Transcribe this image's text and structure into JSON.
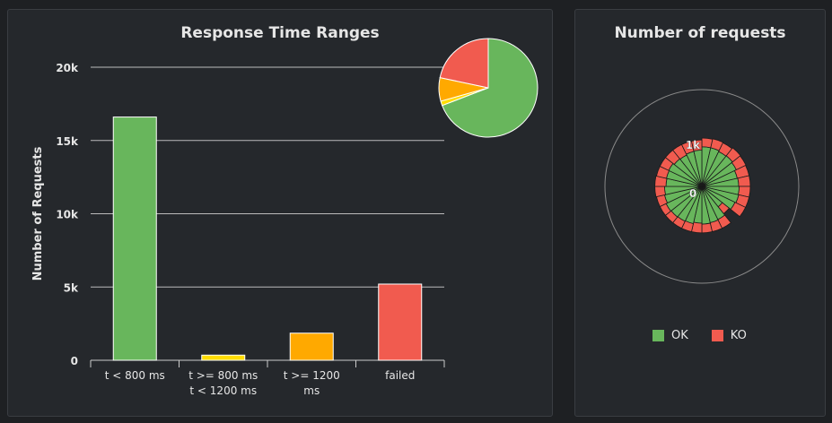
{
  "colors": {
    "background": "#1e2023",
    "panel": "#25282c",
    "ok": "#68b65c",
    "ko": "#f15b4f",
    "yellow": "#ffdd00",
    "orange": "#ffa900",
    "text": "#e6e6e6",
    "grid": "#bbbbbb"
  },
  "left_panel": {
    "title": "Response Time Ranges"
  },
  "right_panel": {
    "title": "Number of requests",
    "legend": [
      {
        "label": "OK",
        "color": "#68b65c"
      },
      {
        "label": "KO",
        "color": "#f15b4f"
      }
    ]
  },
  "chart_data": [
    {
      "type": "bar",
      "title": "Response Time Ranges",
      "ylabel": "Number of Requests",
      "xlabel": "",
      "ylim": [
        0,
        20000
      ],
      "yticks": [
        {
          "value": 0,
          "label": "0"
        },
        {
          "value": 5000,
          "label": "5k"
        },
        {
          "value": 10000,
          "label": "10k"
        },
        {
          "value": 15000,
          "label": "15k"
        },
        {
          "value": 20000,
          "label": "20k"
        }
      ],
      "categories": [
        [
          "t < 800 ms"
        ],
        [
          "t >= 800 ms",
          "t < 1200 ms"
        ],
        [
          "t >= 1200",
          "ms"
        ],
        [
          "failed"
        ]
      ],
      "values": [
        16600,
        350,
        1850,
        5200
      ],
      "colors": [
        "#68b65c",
        "#ffdd00",
        "#ffa900",
        "#f15b4f"
      ],
      "grid": true
    },
    {
      "type": "pie",
      "slices": [
        {
          "value": 16600,
          "color": "#68b65c"
        },
        {
          "value": 350,
          "color": "#ffdd00"
        },
        {
          "value": 1850,
          "color": "#ffa900"
        },
        {
          "value": 5200,
          "color": "#f15b4f"
        }
      ]
    },
    {
      "type": "polar-stacked-bar",
      "title": "Number of requests",
      "radial_ticks": [
        {
          "value": 0,
          "label": "0"
        },
        {
          "value": 1000,
          "label": "1k"
        }
      ],
      "series": [
        {
          "name": "OK",
          "values": [
            820,
            820,
            800,
            810,
            790,
            750,
            760,
            770,
            780,
            760,
            540,
            760,
            770,
            780,
            760,
            790,
            800,
            810,
            820,
            790,
            770,
            740,
            750,
            760,
            730,
            720,
            740,
            750
          ]
        },
        {
          "name": "KO",
          "values": [
            180,
            190,
            200,
            210,
            220,
            250,
            240,
            230,
            220,
            240,
            180,
            200,
            190,
            180,
            200,
            170,
            160,
            150,
            140,
            170,
            200,
            230,
            210,
            200,
            230,
            240,
            220,
            210
          ]
        }
      ]
    }
  ]
}
